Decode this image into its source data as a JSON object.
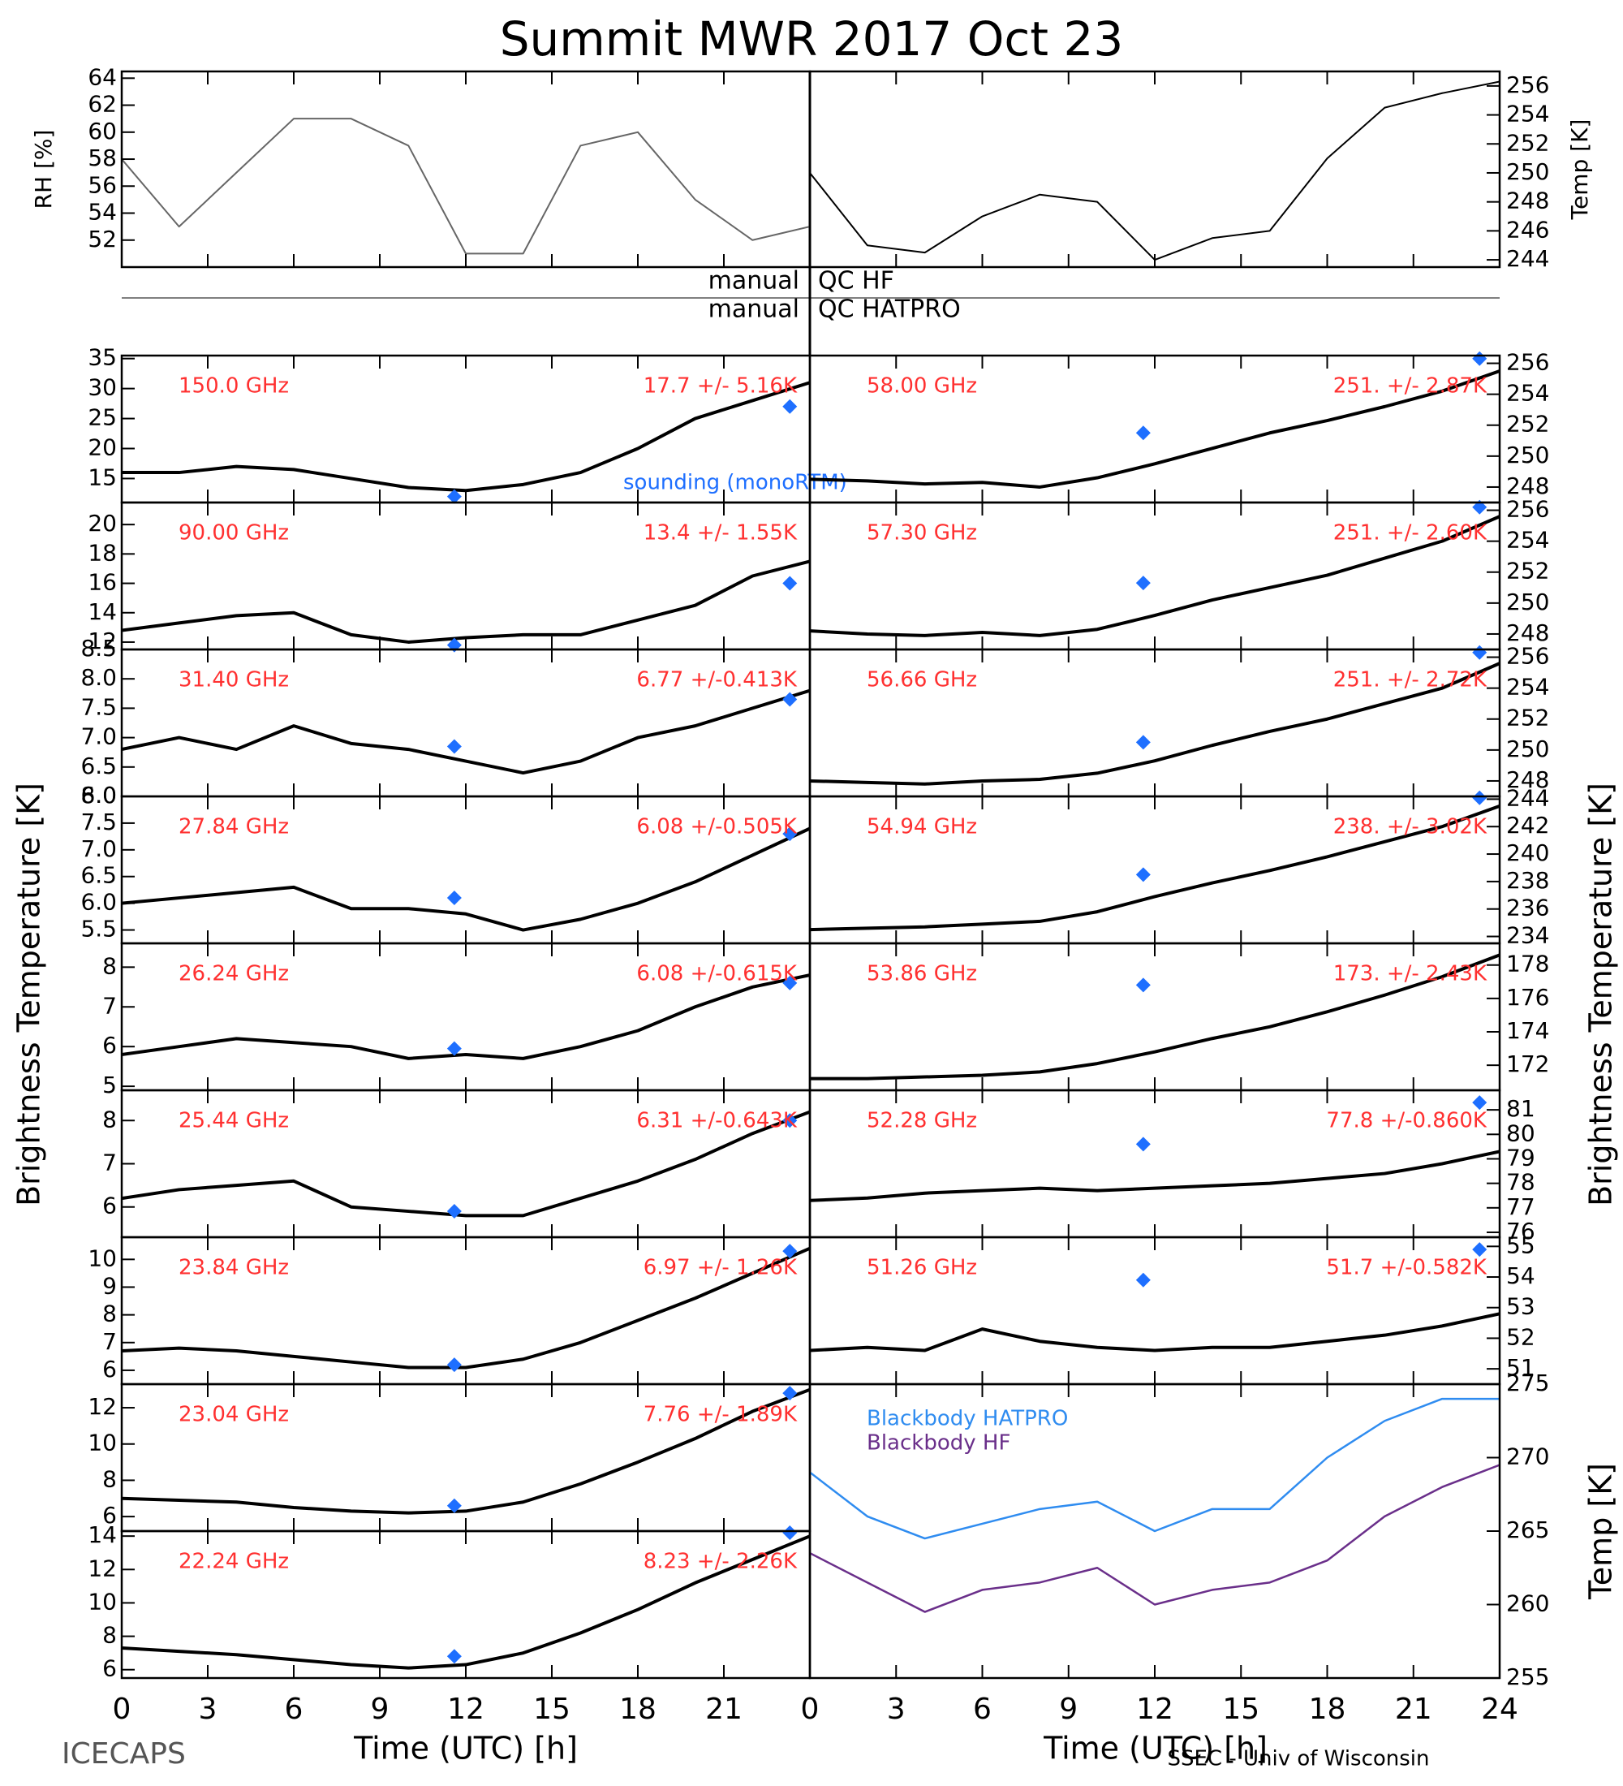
{
  "title": "Summit MWR 2017 Oct 23",
  "y_label": "Brightness Temperature [K]",
  "x_label": "Time (UTC) [h]",
  "footer_left": "ICECAPS",
  "footer_right": "SSEC - Univ of Wisconsin",
  "qc": [
    "manual",
    "QC HF",
    "manual",
    "QC HATPRO"
  ],
  "chart_data": [
    {
      "type": "line",
      "ylabel": "RH [%]",
      "color": "#666666",
      "xlim": [
        0,
        24
      ],
      "xticks": [
        0,
        3,
        6,
        9,
        12,
        15,
        18,
        21
      ],
      "x": [
        0,
        2,
        4,
        6,
        8,
        10,
        12,
        14,
        16,
        18,
        20,
        22,
        24
      ],
      "values": [
        58,
        53,
        57,
        61,
        61,
        59,
        51,
        51,
        59,
        60,
        55,
        52,
        53
      ],
      "ylim": [
        50,
        64.5
      ],
      "yticks": [
        52,
        54,
        56,
        58,
        60,
        62,
        64
      ]
    },
    {
      "type": "line",
      "ylabel": "Temp [K]",
      "color": "#000000",
      "xlim": [
        0,
        24
      ],
      "xticks": [
        0,
        3,
        6,
        9,
        12,
        15,
        18,
        21
      ],
      "x": [
        0,
        2,
        4,
        6,
        8,
        10,
        12,
        14,
        16,
        18,
        20,
        22,
        24
      ],
      "values": [
        250,
        245,
        244.5,
        247,
        248.5,
        248,
        244,
        245.5,
        246,
        251,
        254.5,
        255.5,
        256.3
      ],
      "ylim": [
        243.5,
        257
      ],
      "yticks": [
        244,
        246,
        248,
        250,
        252,
        254,
        256
      ]
    },
    {
      "type": "line",
      "label": "150.0 GHz",
      "stat": "17.7 +/-  5.16K",
      "annotation": "sounding (monoRTM)",
      "color": "#000000",
      "xlim": [
        0,
        24
      ],
      "xticks": [
        0,
        3,
        6,
        9,
        12,
        15,
        18,
        21
      ],
      "x": [
        0,
        2,
        4,
        6,
        8,
        10,
        12,
        14,
        16,
        18,
        20,
        22,
        24
      ],
      "values": [
        16,
        16,
        17,
        16.5,
        15,
        13.5,
        13,
        14,
        16,
        20,
        25,
        28,
        31
      ],
      "ylim": [
        11,
        35.5
      ],
      "yticks": [
        15,
        20,
        25,
        30,
        35
      ],
      "sounding": {
        "color": "#1e6fff",
        "x": [
          11.6,
          23.3
        ],
        "values": [
          12,
          27
        ]
      }
    },
    {
      "type": "line",
      "label": "90.00 GHz",
      "stat": "13.4 +/-  1.55K",
      "color": "#000000",
      "xlim": [
        0,
        24
      ],
      "xticks": [
        0,
        3,
        6,
        9,
        12,
        15,
        18,
        21
      ],
      "x": [
        0,
        2,
        4,
        6,
        8,
        10,
        12,
        14,
        16,
        18,
        20,
        22,
        24
      ],
      "values": [
        12.8,
        13.3,
        13.8,
        14,
        12.5,
        12,
        12.3,
        12.5,
        12.5,
        13.5,
        14.5,
        16.5,
        17.5
      ],
      "ylim": [
        11.5,
        21.5
      ],
      "yticks": [
        12,
        14,
        16,
        18,
        20
      ],
      "sounding": {
        "color": "#1e6fff",
        "x": [
          11.6,
          23.3
        ],
        "values": [
          11.8,
          16
        ]
      }
    },
    {
      "type": "line",
      "label": "31.40 GHz",
      "stat": "6.77 +/-0.413K",
      "color": "#000000",
      "xlim": [
        0,
        24
      ],
      "xticks": [
        0,
        3,
        6,
        9,
        12,
        15,
        18,
        21
      ],
      "x": [
        0,
        2,
        4,
        6,
        8,
        10,
        12,
        14,
        16,
        18,
        20,
        22,
        24
      ],
      "values": [
        6.8,
        7.0,
        6.8,
        7.2,
        6.9,
        6.8,
        6.6,
        6.4,
        6.6,
        7.0,
        7.2,
        7.5,
        7.8
      ],
      "ylim": [
        6.0,
        8.5
      ],
      "yticks": [
        {
          "value": 6,
          "label": "6.0"
        },
        6.5,
        {
          "value": 7,
          "label": "7.0"
        },
        7.5,
        {
          "value": 8,
          "label": "8.0"
        },
        8.5
      ],
      "sounding": {
        "color": "#1e6fff",
        "x": [
          11.6,
          23.3
        ],
        "values": [
          6.85,
          7.65
        ]
      }
    },
    {
      "type": "line",
      "label": "27.84 GHz",
      "stat": "6.08 +/-0.505K",
      "color": "#000000",
      "xlim": [
        0,
        24
      ],
      "xticks": [
        0,
        3,
        6,
        9,
        12,
        15,
        18,
        21
      ],
      "x": [
        0,
        2,
        4,
        6,
        8,
        10,
        12,
        14,
        16,
        18,
        20,
        22,
        24
      ],
      "values": [
        6.0,
        6.1,
        6.2,
        6.3,
        5.9,
        5.9,
        5.8,
        5.5,
        5.7,
        6.0,
        6.4,
        6.9,
        7.4
      ],
      "ylim": [
        5.25,
        8.0
      ],
      "yticks": [
        5.5,
        {
          "value": 6,
          "label": "6.0"
        },
        6.5,
        {
          "value": 7,
          "label": "7.0"
        },
        7.5,
        {
          "value": 8,
          "label": "8.0"
        }
      ],
      "sounding": {
        "color": "#1e6fff",
        "x": [
          11.6,
          23.3
        ],
        "values": [
          6.1,
          7.3
        ]
      }
    },
    {
      "type": "line",
      "label": "26.24 GHz",
      "stat": "6.08 +/-0.615K",
      "color": "#000000",
      "xlim": [
        0,
        24
      ],
      "xticks": [
        0,
        3,
        6,
        9,
        12,
        15,
        18,
        21
      ],
      "x": [
        0,
        2,
        4,
        6,
        8,
        10,
        12,
        14,
        16,
        18,
        20,
        22,
        24
      ],
      "values": [
        5.8,
        6.0,
        6.2,
        6.1,
        6.0,
        5.7,
        5.8,
        5.7,
        6.0,
        6.4,
        7.0,
        7.5,
        7.8
      ],
      "ylim": [
        4.9,
        8.6
      ],
      "yticks": [
        5,
        6,
        7,
        8
      ],
      "sounding": {
        "color": "#1e6fff",
        "x": [
          11.6,
          23.3
        ],
        "values": [
          5.95,
          7.6
        ]
      }
    },
    {
      "type": "line",
      "label": "25.44 GHz",
      "stat": "6.31 +/-0.643K",
      "color": "#000000",
      "xlim": [
        0,
        24
      ],
      "xticks": [
        0,
        3,
        6,
        9,
        12,
        15,
        18,
        21
      ],
      "x": [
        0,
        2,
        4,
        6,
        8,
        10,
        12,
        14,
        16,
        18,
        20,
        22,
        24
      ],
      "values": [
        6.2,
        6.4,
        6.5,
        6.6,
        6.0,
        5.9,
        5.8,
        5.8,
        6.2,
        6.6,
        7.1,
        7.7,
        8.2
      ],
      "ylim": [
        5.3,
        8.7
      ],
      "yticks": [
        6,
        7,
        8
      ],
      "sounding": {
        "color": "#1e6fff",
        "x": [
          11.6,
          23.3
        ],
        "values": [
          5.9,
          8.0
        ]
      }
    },
    {
      "type": "line",
      "label": "23.84 GHz",
      "stat": "6.97 +/-  1.26K",
      "color": "#000000",
      "xlim": [
        0,
        24
      ],
      "xticks": [
        0,
        3,
        6,
        9,
        12,
        15,
        18,
        21
      ],
      "x": [
        0,
        2,
        4,
        6,
        8,
        10,
        12,
        14,
        16,
        18,
        20,
        22,
        24
      ],
      "values": [
        6.7,
        6.8,
        6.7,
        6.5,
        6.3,
        6.1,
        6.1,
        6.4,
        7.0,
        7.8,
        8.6,
        9.5,
        10.4
      ],
      "ylim": [
        5.5,
        10.8
      ],
      "yticks": [
        6,
        7,
        8,
        9,
        10
      ],
      "sounding": {
        "color": "#1e6fff",
        "x": [
          11.6,
          23.3
        ],
        "values": [
          6.2,
          10.3
        ]
      }
    },
    {
      "type": "line",
      "label": "23.04 GHz",
      "stat": "7.76 +/-  1.89K",
      "color": "#000000",
      "xlim": [
        0,
        24
      ],
      "xticks": [
        0,
        3,
        6,
        9,
        12,
        15,
        18,
        21
      ],
      "x": [
        0,
        2,
        4,
        6,
        8,
        10,
        12,
        14,
        16,
        18,
        20,
        22,
        24
      ],
      "values": [
        7.0,
        6.9,
        6.8,
        6.5,
        6.3,
        6.2,
        6.3,
        6.8,
        7.8,
        9.0,
        10.3,
        11.8,
        13
      ],
      "ylim": [
        5.2,
        13.3
      ],
      "yticks": [
        6,
        8,
        10,
        12
      ],
      "sounding": {
        "color": "#1e6fff",
        "x": [
          11.6,
          23.3
        ],
        "values": [
          6.6,
          12.8
        ]
      }
    },
    {
      "type": "line",
      "label": "22.24 GHz",
      "stat": "8.23 +/-  2.26K",
      "color": "#000000",
      "xlim": [
        0,
        24
      ],
      "xticks": [
        0,
        3,
        6,
        9,
        12,
        15,
        18,
        21
      ],
      "x": [
        0,
        2,
        4,
        6,
        8,
        10,
        12,
        14,
        16,
        18,
        20,
        22,
        24
      ],
      "values": [
        7.3,
        7.1,
        6.9,
        6.6,
        6.3,
        6.1,
        6.3,
        7.0,
        8.2,
        9.6,
        11.2,
        12.6,
        14
      ],
      "ylim": [
        5.5,
        14.3
      ],
      "yticks": [
        6,
        8,
        10,
        12,
        14
      ],
      "sounding": {
        "color": "#1e6fff",
        "x": [
          11.6,
          23.3
        ],
        "values": [
          6.8,
          14.2
        ]
      }
    },
    {
      "type": "line",
      "label": "58.00 GHz",
      "stat": "251. +/- 2.87K",
      "color": "#000000",
      "xlim": [
        0,
        24
      ],
      "xticks": [
        0,
        3,
        6,
        9,
        12,
        15,
        18,
        21,
        24
      ],
      "x": [
        0,
        2,
        4,
        6,
        8,
        10,
        12,
        14,
        16,
        18,
        20,
        22,
        24
      ],
      "values": [
        248.5,
        248.4,
        248.2,
        248.3,
        248.0,
        248.6,
        249.5,
        250.5,
        251.5,
        252.3,
        253.2,
        254.2,
        255.5
      ],
      "ylim": [
        247,
        256.5
      ],
      "yticks": [
        248,
        250,
        252,
        254,
        256
      ],
      "sounding": {
        "color": "#1e6fff",
        "x": [
          11.6,
          23.3
        ],
        "values": [
          251.5,
          256.3
        ]
      }
    },
    {
      "type": "line",
      "label": "57.30 GHz",
      "stat": "251. +/- 2.60K",
      "color": "#000000",
      "xlim": [
        0,
        24
      ],
      "xticks": [
        0,
        3,
        6,
        9,
        12,
        15,
        18,
        21,
        24
      ],
      "x": [
        0,
        2,
        4,
        6,
        8,
        10,
        12,
        14,
        16,
        18,
        20,
        22,
        24
      ],
      "values": [
        248.2,
        248.0,
        247.9,
        248.1,
        247.9,
        248.3,
        249.2,
        250.2,
        251.0,
        251.8,
        252.9,
        254.0,
        255.6
      ],
      "ylim": [
        247,
        256.5
      ],
      "yticks": [
        248,
        250,
        252,
        254,
        256
      ],
      "sounding": {
        "color": "#1e6fff",
        "x": [
          11.6,
          23.3
        ],
        "values": [
          251.3,
          256.2
        ]
      }
    },
    {
      "type": "line",
      "label": "56.66 GHz",
      "stat": "251. +/- 2.72K",
      "color": "#000000",
      "xlim": [
        0,
        24
      ],
      "xticks": [
        0,
        3,
        6,
        9,
        12,
        15,
        18,
        21,
        24
      ],
      "x": [
        0,
        2,
        4,
        6,
        8,
        10,
        12,
        14,
        16,
        18,
        20,
        22,
        24
      ],
      "values": [
        248.0,
        247.9,
        247.8,
        248.0,
        248.1,
        248.5,
        249.3,
        250.3,
        251.2,
        252.0,
        253.0,
        254.0,
        255.6
      ],
      "ylim": [
        247,
        256.5
      ],
      "yticks": [
        248,
        250,
        252,
        254,
        256
      ],
      "sounding": {
        "color": "#1e6fff",
        "x": [
          11.6,
          23.3
        ],
        "values": [
          250.5,
          256.3
        ]
      }
    },
    {
      "type": "line",
      "label": "54.94 GHz",
      "stat": "238. +/- 3.02K",
      "color": "#000000",
      "xlim": [
        0,
        24
      ],
      "xticks": [
        0,
        3,
        6,
        9,
        12,
        15,
        18,
        21,
        24
      ],
      "x": [
        0,
        2,
        4,
        6,
        8,
        10,
        12,
        14,
        16,
        18,
        20,
        22,
        24
      ],
      "values": [
        234.5,
        234.6,
        234.7,
        234.9,
        235.1,
        235.8,
        236.9,
        237.9,
        238.8,
        239.8,
        240.9,
        242.0,
        243.5
      ],
      "ylim": [
        233.5,
        244.2
      ],
      "yticks": [
        234,
        236,
        238,
        240,
        242,
        244
      ],
      "sounding": {
        "color": "#1e6fff",
        "x": [
          11.6,
          23.3
        ],
        "values": [
          238.5,
          244.1
        ]
      }
    },
    {
      "type": "line",
      "label": "53.86 GHz",
      "stat": "173. +/- 2.43K",
      "color": "#000000",
      "xlim": [
        0,
        24
      ],
      "xticks": [
        0,
        3,
        6,
        9,
        12,
        15,
        18,
        21,
        24
      ],
      "x": [
        0,
        2,
        4,
        6,
        8,
        10,
        12,
        14,
        16,
        18,
        20,
        22,
        24
      ],
      "values": [
        171.2,
        171.2,
        171.3,
        171.4,
        171.6,
        172.1,
        172.8,
        173.6,
        174.3,
        175.2,
        176.2,
        177.3,
        178.6
      ],
      "ylim": [
        170.5,
        179.3
      ],
      "yticks": [
        172,
        174,
        176,
        178
      ],
      "sounding": {
        "color": "#1e6fff",
        "x": [
          11.6
        ],
        "values": [
          176.8
        ]
      }
    },
    {
      "type": "line",
      "label": "52.28 GHz",
      "stat": "77.8 +/-0.860K",
      "color": "#000000",
      "xlim": [
        0,
        24
      ],
      "xticks": [
        0,
        3,
        6,
        9,
        12,
        15,
        18,
        21,
        24
      ],
      "x": [
        0,
        2,
        4,
        6,
        8,
        10,
        12,
        14,
        16,
        18,
        20,
        22,
        24
      ],
      "values": [
        77.3,
        77.4,
        77.6,
        77.7,
        77.8,
        77.7,
        77.8,
        77.9,
        78.0,
        78.2,
        78.4,
        78.8,
        79.3
      ],
      "ylim": [
        75.8,
        81.8
      ],
      "yticks": [
        76,
        77,
        78,
        79,
        80,
        81
      ],
      "sounding": {
        "color": "#1e6fff",
        "x": [
          11.6,
          23.3
        ],
        "values": [
          79.6,
          81.3
        ]
      }
    },
    {
      "type": "line",
      "label": "51.26 GHz",
      "stat": "51.7 +/-0.582K",
      "color": "#000000",
      "xlim": [
        0,
        24
      ],
      "xticks": [
        0,
        3,
        6,
        9,
        12,
        15,
        18,
        21,
        24
      ],
      "x": [
        0,
        2,
        4,
        6,
        8,
        10,
        12,
        14,
        16,
        18,
        20,
        22,
        24
      ],
      "values": [
        51.6,
        51.7,
        51.6,
        52.3,
        51.9,
        51.7,
        51.6,
        51.7,
        51.7,
        51.9,
        52.1,
        52.4,
        52.8
      ],
      "ylim": [
        50.5,
        55.3
      ],
      "yticks": [
        51,
        52,
        53,
        54,
        55
      ],
      "sounding": {
        "color": "#1e6fff",
        "x": [
          11.6,
          23.3
        ],
        "values": [
          53.9,
          54.9
        ]
      }
    },
    {
      "type": "line",
      "ylabel": "Temp [K]",
      "xlim": [
        0,
        24
      ],
      "xticks": [
        0,
        3,
        6,
        9,
        12,
        15,
        18,
        21,
        24
      ],
      "x": [
        0,
        2,
        4,
        6,
        8,
        10,
        12,
        14,
        16,
        18,
        20,
        22,
        24
      ],
      "ylim": [
        255,
        275
      ],
      "yticks": [
        255,
        260,
        265,
        270,
        275
      ],
      "series": [
        {
          "name": "Blackbody HATPRO",
          "color": "#2f8cf0",
          "values": [
            269,
            266,
            264.5,
            265.5,
            266.5,
            267,
            265,
            266.5,
            266.5,
            270,
            272.5,
            274,
            274
          ]
        },
        {
          "name": "Blackbody HF",
          "color": "#6a2f8a",
          "values": [
            263.5,
            261.5,
            259.5,
            261,
            261.5,
            262.5,
            260,
            261,
            261.5,
            263,
            266,
            268,
            269.5
          ]
        }
      ]
    }
  ]
}
